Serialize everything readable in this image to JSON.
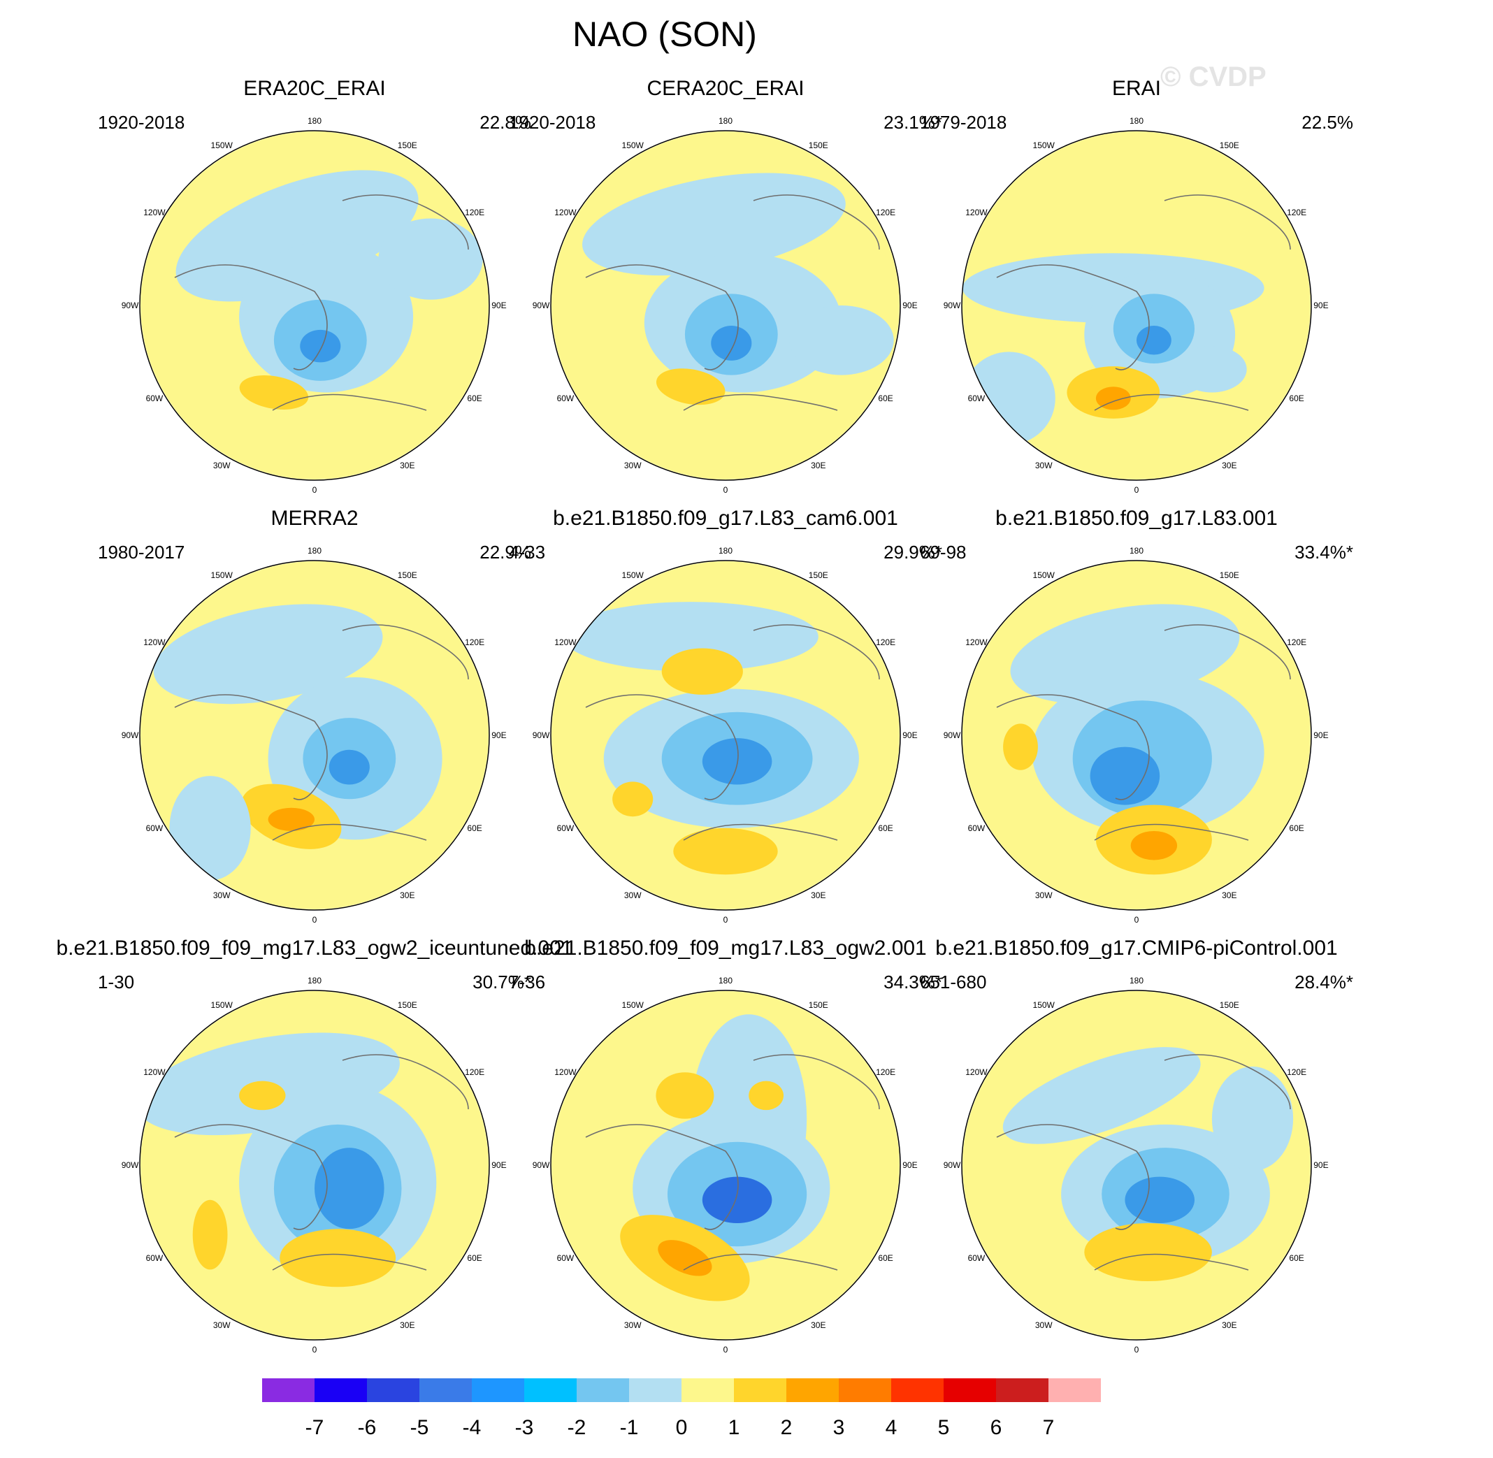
{
  "title": "NAO (SON)",
  "watermark": "© CVDP",
  "longitude_labels": [
    "180",
    "150W",
    "150E",
    "120W",
    "120E",
    "90W",
    "90E",
    "60W",
    "60E",
    "30W",
    "30E",
    "0"
  ],
  "panels": [
    {
      "title": "ERA20C_ERAI",
      "years": "1920-2018",
      "percent": "22.8%"
    },
    {
      "title": "CERA20C_ERAI",
      "years": "1920-2018",
      "percent": "23.1%*"
    },
    {
      "title": "ERAI",
      "years": "1979-2018",
      "percent": "22.5%"
    },
    {
      "title": "MERRA2",
      "years": "1980-2017",
      "percent": "22.9%"
    },
    {
      "title": "b.e21.B1850.f09_g17.L83_cam6.001",
      "years": "4-33",
      "percent": "29.9%*"
    },
    {
      "title": "b.e21.B1850.f09_g17.L83.001",
      "years": "69-98",
      "percent": "33.4%*"
    },
    {
      "title": "b.e21.B1850.f09_f09_mg17.L83_ogw2_iceuntuned.001",
      "years": "1-30",
      "percent": "30.7%*"
    },
    {
      "title": "b.e21.B1850.f09_f09_mg17.L83_ogw2.001",
      "years": "7-36",
      "percent": "34.3%*"
    },
    {
      "title": "b.e21.B1850.f09_g17.CMIP6-piControl.001",
      "years": "651-680",
      "percent": "28.4%*"
    }
  ],
  "colorbar": {
    "labels": [
      "-7",
      "-6",
      "-5",
      "-4",
      "-3",
      "-2",
      "-1",
      "0",
      "1",
      "2",
      "3",
      "4",
      "5",
      "6",
      "7"
    ],
    "colors": [
      "#8a2be2",
      "#1a00f5",
      "#2a44e0",
      "#3a7be8",
      "#1e96ff",
      "#00c0ff",
      "#74c6f0",
      "#b3dff2",
      "#fdf78c",
      "#ffd52c",
      "#ffa500",
      "#ff7c00",
      "#ff3300",
      "#e60000",
      "#cc1e1e",
      "#ffb0b0"
    ]
  }
}
